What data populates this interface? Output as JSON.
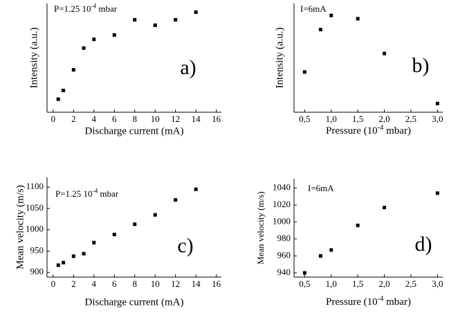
{
  "chart_data": [
    {
      "type": "scatter",
      "annotation": [
        "P=1.25 10",
        "-4",
        " mbar"
      ],
      "panel_label": "a)",
      "xlabel": "Discharge current (mA)",
      "ylabel": "Intensity (a.u.)",
      "color": "#000000",
      "x": [
        0.5,
        1,
        2,
        3,
        4,
        6,
        8,
        10,
        12,
        14
      ],
      "values": [
        12,
        20,
        39,
        59,
        67,
        71,
        85,
        80,
        85,
        92
      ],
      "xlim": [
        -0.6,
        16.5
      ],
      "xticks": [
        0,
        2,
        4,
        6,
        8,
        10,
        12,
        14,
        16
      ],
      "ylim": [
        0,
        100
      ]
    },
    {
      "type": "scatter",
      "annotation": [
        "I=6mA"
      ],
      "panel_label": "b)",
      "xlabel": [
        "Pressure (10",
        "-4",
        " mbar)"
      ],
      "ylabel": "Intensity (a.u.)",
      "color": "#000000",
      "x": [
        0.5,
        0.8,
        1.0,
        1.5,
        2.0,
        3.0
      ],
      "values": [
        37,
        76,
        89,
        86,
        54,
        8
      ],
      "xlim": [
        0.3,
        3.1
      ],
      "xticks": [
        {
          "value": 0.5,
          "label": "0,5"
        },
        {
          "value": 1.0,
          "label": "1,0"
        },
        {
          "value": 1.5,
          "label": "1,5"
        },
        {
          "value": 2.0,
          "label": "2,0"
        },
        {
          "value": 2.5,
          "label": "2,5"
        },
        {
          "value": 3.0,
          "label": "3,0"
        }
      ],
      "ylim": [
        0,
        100
      ]
    },
    {
      "type": "scatter",
      "annotation": [
        "P=1.25 10",
        "-4",
        " mbar"
      ],
      "panel_label": "c)",
      "xlabel": "Discharge current (mA)",
      "ylabel": "Mean velocity (m/s)",
      "color": "#000000",
      "x": [
        0.5,
        1,
        2,
        3,
        4,
        6,
        8,
        10,
        12,
        14
      ],
      "values": [
        917,
        923,
        938,
        944,
        970,
        989,
        1013,
        1035,
        1070,
        1095
      ],
      "xlim": [
        -0.6,
        16.5
      ],
      "xticks": [
        0,
        2,
        4,
        6,
        8,
        10,
        12,
        14,
        16
      ],
      "ylim": [
        889,
        1123
      ],
      "yticks": [
        900,
        950,
        1000,
        1050,
        1100
      ]
    },
    {
      "type": "scatter",
      "annotation": [
        "I=6mA"
      ],
      "panel_label": "d)",
      "xlabel": [
        "Pressure (10",
        "-4",
        " mbar)"
      ],
      "ylabel": "Mean velocity (m/s)",
      "color": "#000000",
      "x": [
        0.5,
        0.8,
        1.0,
        1.5,
        2.0,
        3.0
      ],
      "values": [
        940,
        960,
        967,
        996,
        1017,
        1034
      ],
      "xlim": [
        0.3,
        3.1
      ],
      "xticks": [
        {
          "value": 0.5,
          "label": "0,5"
        },
        {
          "value": 1.0,
          "label": "1,0"
        },
        {
          "value": 1.5,
          "label": "1,5"
        },
        {
          "value": 2.0,
          "label": "2,0"
        },
        {
          "value": 2.5,
          "label": "2,5"
        },
        {
          "value": 3.0,
          "label": "3,0"
        }
      ],
      "ylim": [
        935,
        1051
      ],
      "yticks": [
        940,
        960,
        980,
        1000,
        1020,
        1040
      ]
    }
  ]
}
